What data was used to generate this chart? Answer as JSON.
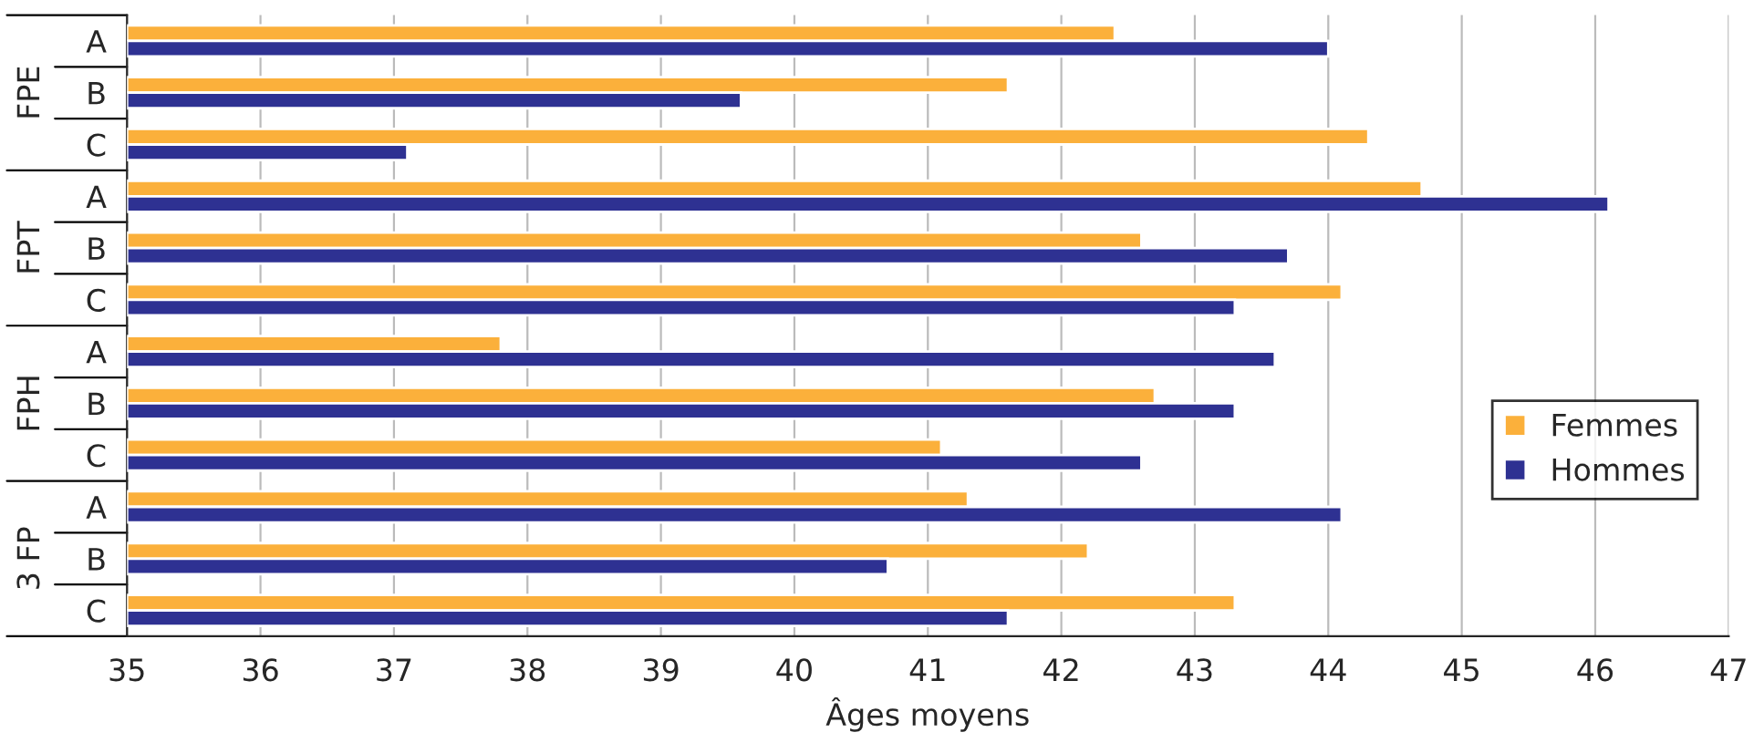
{
  "chart_data": {
    "type": "bar",
    "orientation": "horizontal",
    "xlabel": "Âges moyens",
    "categories": [
      "A",
      "B",
      "C",
      "A",
      "B",
      "C",
      "A",
      "B",
      "C",
      "A",
      "B",
      "C"
    ],
    "series": [
      {
        "name": "Femmes",
        "color": "#fbb03b",
        "values": [
          42.4,
          41.6,
          44.3,
          44.7,
          42.6,
          44.1,
          37.8,
          42.7,
          41.1,
          41.3,
          42.2,
          43.3
        ]
      },
      {
        "name": "Hommes",
        "color": "#2e3192",
        "values": [
          44.0,
          39.6,
          37.1,
          46.1,
          43.7,
          43.3,
          43.6,
          43.3,
          42.6,
          44.1,
          40.7,
          41.6
        ]
      }
    ],
    "annotations": [
      "FPE",
      "FPT",
      "FPH",
      "3 FP"
    ],
    "xlim": [
      35,
      47
    ],
    "xticks": [
      35,
      36,
      37,
      38,
      39,
      40,
      41,
      42,
      43,
      44,
      45,
      46,
      47
    ],
    "grid": "x",
    "legend": "right"
  }
}
